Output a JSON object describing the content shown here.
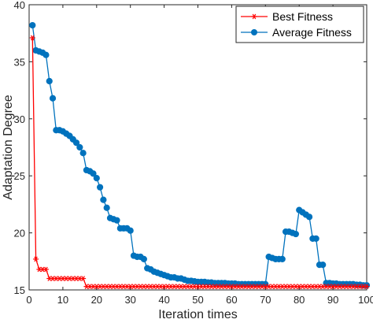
{
  "chart_data": {
    "type": "line",
    "title": "",
    "xlabel": "Iteration times",
    "ylabel": "Adaptation Degree",
    "xlim": [
      0,
      100
    ],
    "ylim": [
      15,
      40
    ],
    "xticks": [
      0,
      10,
      20,
      30,
      40,
      50,
      60,
      70,
      80,
      90,
      100
    ],
    "yticks": [
      15,
      20,
      25,
      30,
      35,
      40
    ],
    "grid": false,
    "legend_position": "top-right",
    "series": [
      {
        "name": "Best Fitness",
        "color": "#ff0000",
        "marker": "asterisk",
        "x": [
          1,
          2,
          3,
          4,
          5,
          6,
          7,
          8,
          9,
          10,
          11,
          12,
          13,
          14,
          15,
          16,
          17,
          18,
          19,
          20,
          21,
          22,
          23,
          24,
          25,
          26,
          27,
          28,
          29,
          30,
          31,
          32,
          33,
          34,
          35,
          36,
          37,
          38,
          39,
          40,
          41,
          42,
          43,
          44,
          45,
          46,
          47,
          48,
          49,
          50,
          51,
          52,
          53,
          54,
          55,
          56,
          57,
          58,
          59,
          60,
          61,
          62,
          63,
          64,
          65,
          66,
          67,
          68,
          69,
          70,
          71,
          72,
          73,
          74,
          75,
          76,
          77,
          78,
          79,
          80,
          81,
          82,
          83,
          84,
          85,
          86,
          87,
          88,
          89,
          90,
          91,
          92,
          93,
          94,
          95,
          96,
          97,
          98,
          99,
          100
        ],
        "values": [
          37.1,
          17.7,
          16.8,
          16.8,
          16.8,
          16.0,
          16.0,
          16.0,
          16.0,
          16.0,
          16.0,
          16.0,
          16.0,
          16.0,
          16.0,
          16.0,
          15.3,
          15.3,
          15.3,
          15.3,
          15.3,
          15.3,
          15.3,
          15.3,
          15.3,
          15.3,
          15.3,
          15.3,
          15.3,
          15.3,
          15.3,
          15.3,
          15.3,
          15.3,
          15.3,
          15.3,
          15.3,
          15.3,
          15.3,
          15.3,
          15.3,
          15.3,
          15.3,
          15.3,
          15.3,
          15.3,
          15.3,
          15.3,
          15.3,
          15.3,
          15.3,
          15.3,
          15.3,
          15.3,
          15.3,
          15.3,
          15.3,
          15.3,
          15.3,
          15.3,
          15.3,
          15.3,
          15.3,
          15.3,
          15.3,
          15.3,
          15.3,
          15.3,
          15.3,
          15.3,
          15.3,
          15.3,
          15.3,
          15.3,
          15.3,
          15.3,
          15.3,
          15.3,
          15.3,
          15.3,
          15.3,
          15.3,
          15.3,
          15.3,
          15.3,
          15.3,
          15.3,
          15.3,
          15.3,
          15.3,
          15.3,
          15.3,
          15.3,
          15.3,
          15.3,
          15.3,
          15.3,
          15.3,
          15.3,
          15.3
        ]
      },
      {
        "name": "Average Fitness",
        "color": "#0072bd",
        "marker": "circle",
        "x": [
          1,
          2,
          3,
          4,
          5,
          6,
          7,
          8,
          9,
          10,
          11,
          12,
          13,
          14,
          15,
          16,
          17,
          18,
          19,
          20,
          21,
          22,
          23,
          24,
          25,
          26,
          27,
          28,
          29,
          30,
          31,
          32,
          33,
          34,
          35,
          36,
          37,
          38,
          39,
          40,
          41,
          42,
          43,
          44,
          45,
          46,
          47,
          48,
          49,
          50,
          51,
          52,
          53,
          54,
          55,
          56,
          57,
          58,
          59,
          60,
          61,
          62,
          63,
          64,
          65,
          66,
          67,
          68,
          69,
          70,
          71,
          72,
          73,
          74,
          75,
          76,
          77,
          78,
          79,
          80,
          81,
          82,
          83,
          84,
          85,
          86,
          87,
          88,
          89,
          90,
          91,
          92,
          93,
          94,
          95,
          96,
          97,
          98,
          99,
          100
        ],
        "values": [
          38.2,
          36.0,
          35.9,
          35.8,
          35.6,
          33.3,
          31.8,
          29.0,
          29.0,
          28.9,
          28.7,
          28.5,
          28.2,
          27.9,
          27.5,
          27.0,
          25.5,
          25.4,
          25.2,
          24.8,
          24.0,
          22.9,
          22.2,
          21.3,
          21.2,
          21.1,
          20.4,
          20.4,
          20.4,
          20.2,
          18.0,
          17.9,
          17.9,
          17.7,
          16.9,
          16.8,
          16.6,
          16.5,
          16.4,
          16.3,
          16.2,
          16.1,
          16.1,
          16.0,
          16.0,
          15.9,
          15.8,
          15.8,
          15.75,
          15.7,
          15.7,
          15.7,
          15.65,
          15.65,
          15.6,
          15.6,
          15.6,
          15.6,
          15.55,
          15.55,
          15.55,
          15.5,
          15.5,
          15.5,
          15.5,
          15.5,
          15.5,
          15.5,
          15.5,
          15.5,
          17.9,
          17.8,
          17.7,
          17.7,
          17.7,
          20.1,
          20.1,
          20.0,
          19.9,
          22.0,
          21.8,
          21.6,
          21.4,
          19.5,
          19.5,
          17.2,
          17.2,
          15.6,
          15.6,
          15.55,
          15.55,
          15.5,
          15.5,
          15.5,
          15.5,
          15.5,
          15.45,
          15.45,
          15.4,
          15.4
        ]
      }
    ]
  }
}
